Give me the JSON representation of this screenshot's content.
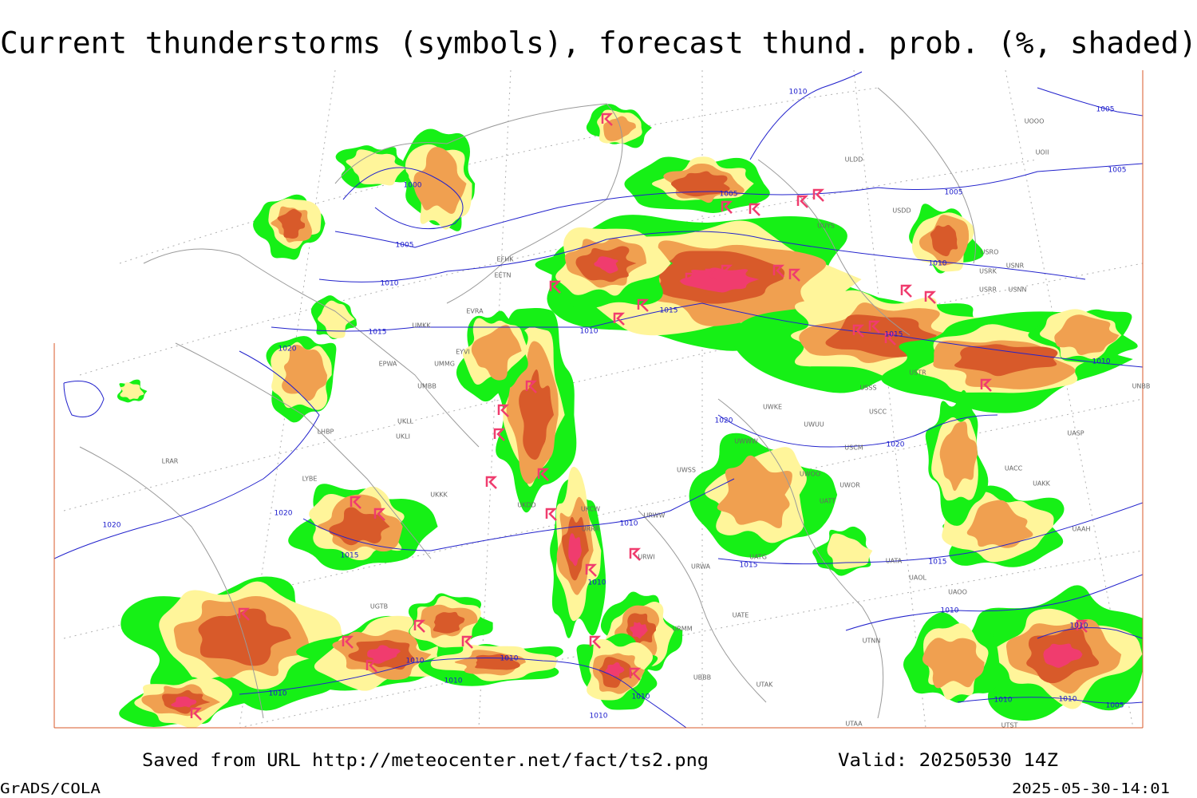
{
  "header": {
    "title": "Current thunderstorms (symbols), forecast thund. prob. (%, shaded)"
  },
  "map": {
    "isobar_labels": [
      "1010",
      "1005",
      "1000",
      "1005",
      "1005",
      "1005",
      "1005",
      "1010",
      "1010",
      "1015",
      "1015",
      "1010",
      "1015",
      "1020",
      "1010",
      "1020",
      "1020",
      "1020",
      "1020",
      "1010",
      "1015",
      "1015",
      "1015",
      "1010",
      "1010",
      "1010",
      "1010",
      "1010",
      "1010",
      "1010",
      "1010",
      "1010",
      "1010",
      "1010",
      "1005"
    ],
    "station_labels": [
      "ULDD",
      "UUYS",
      "USDD",
      "UOOO",
      "UOII",
      "USRO",
      "USRK",
      "USNR",
      "USRR",
      "USNN",
      "EFHK",
      "EETN",
      "EVRA",
      "EYVI",
      "UMKK",
      "EPWA",
      "UMMG",
      "UMBB",
      "UKLL",
      "UKLI",
      "LHBP",
      "LRAR",
      "LYBE",
      "UKKK",
      "UKDD",
      "UKCW",
      "URRR",
      "URWI",
      "URWA",
      "UGTB",
      "UBBB",
      "UTAK",
      "UTAA",
      "UATE",
      "UATG",
      "UATT",
      "UWOO",
      "UWOR",
      "USCM",
      "UWWW",
      "UWKE",
      "UWUU",
      "USCC",
      "USSS",
      "USTR",
      "UAOL",
      "UAOO",
      "UATA",
      "UACC",
      "UAKK",
      "UAAH",
      "UASP",
      "UNBB",
      "UTNN",
      "UTST",
      "URWW",
      "UWSS",
      "URMM"
    ]
  },
  "footer": {
    "source": "Saved from URL http://meteocenter.net/fact/ts2.png",
    "valid": "Valid: 20250530 14Z",
    "software": "GrADS/COLA",
    "timestamp": "2025-05-30-14:01"
  }
}
